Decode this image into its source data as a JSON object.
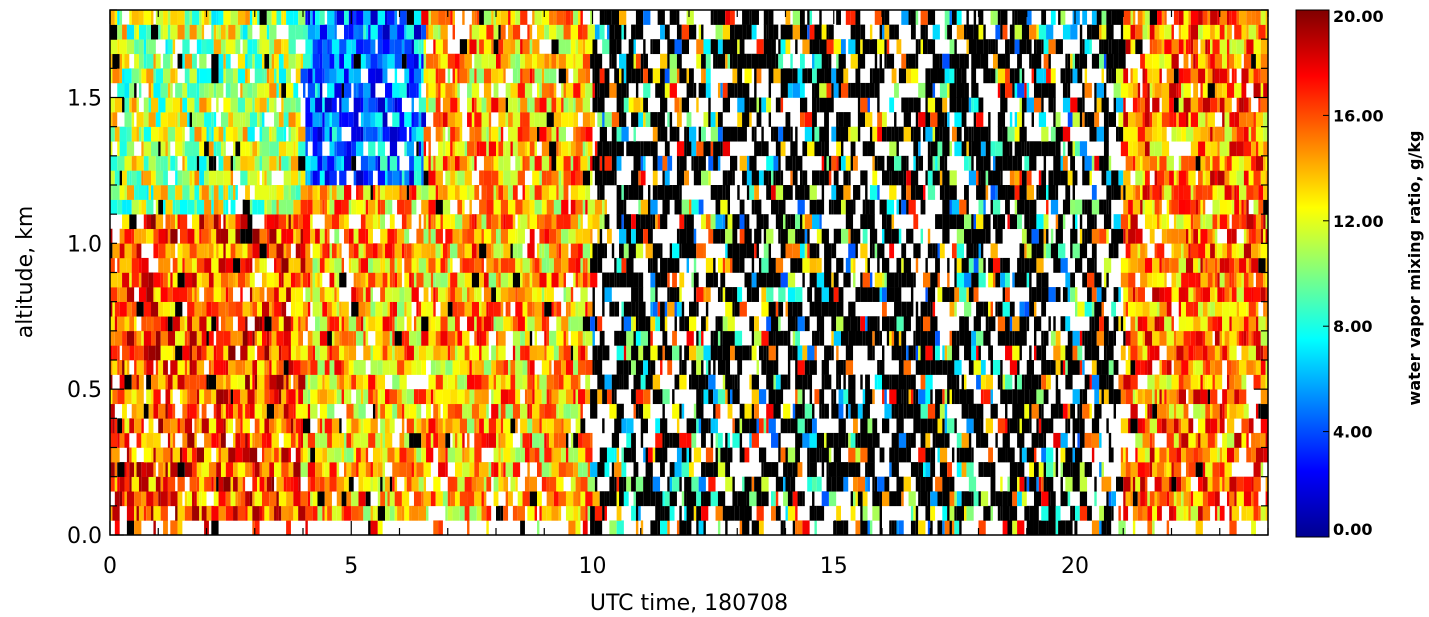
{
  "chart_data": {
    "type": "heatmap",
    "title": "",
    "xlabel": "UTC time, 180708",
    "ylabel": "altitude, km",
    "xlim": [
      0,
      24
    ],
    "ylim": [
      0,
      1.8
    ],
    "x_ticks": [
      {
        "value": 0,
        "label": "0"
      },
      {
        "value": 5,
        "label": "5"
      },
      {
        "value": 10,
        "label": "10"
      },
      {
        "value": 15,
        "label": "15"
      },
      {
        "value": 20,
        "label": "20"
      }
    ],
    "y_ticks": [
      {
        "value": 0.0,
        "label": "0.0"
      },
      {
        "value": 0.5,
        "label": "0.5"
      },
      {
        "value": 1.0,
        "label": "1.0"
      },
      {
        "value": 1.5,
        "label": "1.5"
      }
    ],
    "colorbar": {
      "title": "water vapor mixing ratio, g/kg",
      "range": [
        0,
        20
      ],
      "colormap": "rainbow (dark blue to dark red)",
      "ticks": [
        {
          "value": 0,
          "label": "0.00"
        },
        {
          "value": 4,
          "label": "4.00"
        },
        {
          "value": 8,
          "label": "8.00"
        },
        {
          "value": 12,
          "label": "12.00"
        },
        {
          "value": 16,
          "label": "16.00"
        },
        {
          "value": 20,
          "label": "20.00"
        }
      ]
    },
    "missing_data_color": "#000000",
    "no_data_color": "#ffffff",
    "grid": false,
    "description_of_field": [
      {
        "time_range": [
          0,
          4
        ],
        "altitude_range": [
          0,
          1.1
        ],
        "approx_value": 16
      },
      {
        "time_range": [
          0,
          4
        ],
        "altitude_range": [
          1.1,
          1.8
        ],
        "approx_value": 11
      },
      {
        "time_range": [
          4,
          6.5
        ],
        "altitude_range": [
          1.2,
          1.8
        ],
        "approx_value": 5
      },
      {
        "time_range": [
          4,
          6.5
        ],
        "altitude_range": [
          0,
          1.2
        ],
        "approx_value": 14
      },
      {
        "time_range": [
          6.5,
          10
        ],
        "altitude_range": [
          0,
          1.8
        ],
        "approx_value": 14
      },
      {
        "time_range": [
          10,
          21
        ],
        "altitude_range": [
          0,
          1.8
        ],
        "approx_value": "mostly missing/black"
      },
      {
        "time_range": [
          21,
          24
        ],
        "altitude_range": [
          0,
          1.8
        ],
        "approx_value": 15
      }
    ]
  }
}
